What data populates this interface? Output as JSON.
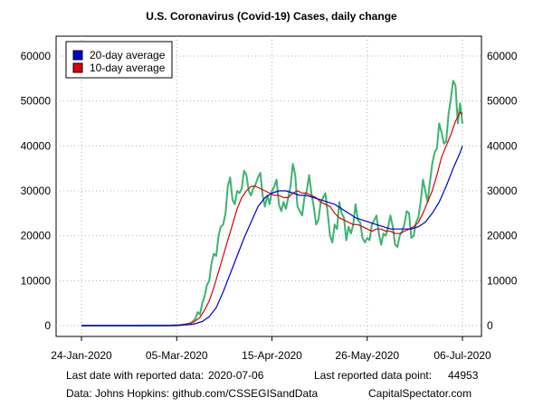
{
  "chart_data": {
    "type": "line",
    "title": "U.S. Coronavirus (Covid-19) Cases, daily change",
    "xlabel": "",
    "ylabel": "",
    "x_start": "2020-01-24",
    "x_end": "2020-07-06",
    "xlim": [
      "2020-01-24",
      "2020-07-06"
    ],
    "x_ticks": [
      {
        "date": "2020-01-24",
        "label": "24-Jan-2020"
      },
      {
        "date": "2020-03-05",
        "label": "05-Mar-2020"
      },
      {
        "date": "2020-04-15",
        "label": "15-Apr-2020"
      },
      {
        "date": "2020-05-26",
        "label": "26-May-2020"
      },
      {
        "date": "2020-07-06",
        "label": "06-Jul-2020"
      }
    ],
    "ylim": [
      0,
      60000
    ],
    "y_ticks": [
      0,
      10000,
      20000,
      30000,
      40000,
      50000,
      60000
    ],
    "grid": true,
    "legend_position": "top-left",
    "legend": [
      {
        "label": "20-day average",
        "color": "#0000cd"
      },
      {
        "label": "10-day average",
        "color": "#e00000"
      }
    ],
    "series": [
      {
        "name": "daily",
        "color": "#3cb371",
        "points": [
          [
            "2020-01-24",
            0
          ],
          [
            "2020-02-15",
            0
          ],
          [
            "2020-02-29",
            20
          ],
          [
            "2020-03-03",
            50
          ],
          [
            "2020-03-06",
            100
          ],
          [
            "2020-03-09",
            300
          ],
          [
            "2020-03-11",
            500
          ],
          [
            "2020-03-13",
            1500
          ],
          [
            "2020-03-14",
            3000
          ],
          [
            "2020-03-15",
            2500
          ],
          [
            "2020-03-16",
            5000
          ],
          [
            "2020-03-17",
            6500
          ],
          [
            "2020-03-18",
            9000
          ],
          [
            "2020-03-19",
            10000
          ],
          [
            "2020-03-20",
            14000
          ],
          [
            "2020-03-21",
            16000
          ],
          [
            "2020-03-22",
            15500
          ],
          [
            "2020-03-23",
            20000
          ],
          [
            "2020-03-24",
            22000
          ],
          [
            "2020-03-25",
            22500
          ],
          [
            "2020-03-26",
            25000
          ],
          [
            "2020-03-27",
            31000
          ],
          [
            "2020-03-28",
            33000
          ],
          [
            "2020-03-29",
            28000
          ],
          [
            "2020-03-30",
            27000
          ],
          [
            "2020-03-31",
            30000
          ],
          [
            "2020-04-01",
            29500
          ],
          [
            "2020-04-02",
            30500
          ],
          [
            "2020-04-03",
            34500
          ],
          [
            "2020-04-04",
            33500
          ],
          [
            "2020-04-05",
            30000
          ],
          [
            "2020-04-06",
            29000
          ],
          [
            "2020-04-07",
            30500
          ],
          [
            "2020-04-08",
            31500
          ],
          [
            "2020-04-09",
            33000
          ],
          [
            "2020-04-10",
            34000
          ],
          [
            "2020-04-11",
            29000
          ],
          [
            "2020-04-12",
            26500
          ],
          [
            "2020-04-13",
            29000
          ],
          [
            "2020-04-14",
            27000
          ],
          [
            "2020-04-15",
            30000
          ],
          [
            "2020-04-16",
            31000
          ],
          [
            "2020-04-17",
            32500
          ],
          [
            "2020-04-18",
            27000
          ],
          [
            "2020-04-19",
            25500
          ],
          [
            "2020-04-20",
            27500
          ],
          [
            "2020-04-21",
            26000
          ],
          [
            "2020-04-22",
            28500
          ],
          [
            "2020-04-23",
            31000
          ],
          [
            "2020-04-24",
            36000
          ],
          [
            "2020-04-25",
            33500
          ],
          [
            "2020-04-26",
            26500
          ],
          [
            "2020-04-27",
            25500
          ],
          [
            "2020-04-28",
            24500
          ],
          [
            "2020-04-29",
            28500
          ],
          [
            "2020-04-30",
            30000
          ],
          [
            "2020-05-01",
            33500
          ],
          [
            "2020-05-02",
            29500
          ],
          [
            "2020-05-03",
            26500
          ],
          [
            "2020-05-04",
            22500
          ],
          [
            "2020-05-05",
            23500
          ],
          [
            "2020-05-06",
            27500
          ],
          [
            "2020-05-07",
            28500
          ],
          [
            "2020-05-08",
            29500
          ],
          [
            "2020-05-09",
            25000
          ],
          [
            "2020-05-10",
            20000
          ],
          [
            "2020-05-11",
            18500
          ],
          [
            "2020-05-12",
            22500
          ],
          [
            "2020-05-13",
            21500
          ],
          [
            "2020-05-14",
            27500
          ],
          [
            "2020-05-15",
            25000
          ],
          [
            "2020-05-16",
            24000
          ],
          [
            "2020-05-17",
            19000
          ],
          [
            "2020-05-18",
            22000
          ],
          [
            "2020-05-19",
            20500
          ],
          [
            "2020-05-20",
            22500
          ],
          [
            "2020-05-21",
            27000
          ],
          [
            "2020-05-22",
            23500
          ],
          [
            "2020-05-23",
            23000
          ],
          [
            "2020-05-24",
            19500
          ],
          [
            "2020-05-25",
            18500
          ],
          [
            "2020-05-26",
            19500
          ],
          [
            "2020-05-27",
            19000
          ],
          [
            "2020-05-28",
            22500
          ],
          [
            "2020-05-29",
            23500
          ],
          [
            "2020-05-30",
            24500
          ],
          [
            "2020-05-31",
            20500
          ],
          [
            "2020-06-01",
            18000
          ],
          [
            "2020-06-02",
            20500
          ],
          [
            "2020-06-03",
            20000
          ],
          [
            "2020-06-04",
            22000
          ],
          [
            "2020-06-05",
            24500
          ],
          [
            "2020-06-06",
            22000
          ],
          [
            "2020-06-07",
            18000
          ],
          [
            "2020-06-08",
            17500
          ],
          [
            "2020-06-09",
            20000
          ],
          [
            "2020-06-10",
            21000
          ],
          [
            "2020-06-11",
            22500
          ],
          [
            "2020-06-12",
            25500
          ],
          [
            "2020-06-13",
            25000
          ],
          [
            "2020-06-14",
            19500
          ],
          [
            "2020-06-15",
            20000
          ],
          [
            "2020-06-16",
            23000
          ],
          [
            "2020-06-17",
            24000
          ],
          [
            "2020-06-18",
            27500
          ],
          [
            "2020-06-19",
            32500
          ],
          [
            "2020-06-20",
            30000
          ],
          [
            "2020-06-21",
            27500
          ],
          [
            "2020-06-22",
            32000
          ],
          [
            "2020-06-23",
            36000
          ],
          [
            "2020-06-24",
            38500
          ],
          [
            "2020-06-25",
            39500
          ],
          [
            "2020-06-26",
            45000
          ],
          [
            "2020-06-27",
            43000
          ],
          [
            "2020-06-28",
            40500
          ],
          [
            "2020-06-29",
            41000
          ],
          [
            "2020-06-30",
            47000
          ],
          [
            "2020-07-01",
            50500
          ],
          [
            "2020-07-02",
            54500
          ],
          [
            "2020-07-03",
            53500
          ],
          [
            "2020-07-04",
            45000
          ],
          [
            "2020-07-05",
            49500
          ],
          [
            "2020-07-06",
            44953
          ]
        ]
      },
      {
        "name": "10-day average",
        "color": "#e00000",
        "points": [
          [
            "2020-01-24",
            0
          ],
          [
            "2020-03-01",
            0
          ],
          [
            "2020-03-08",
            200
          ],
          [
            "2020-03-12",
            700
          ],
          [
            "2020-03-15",
            1800
          ],
          [
            "2020-03-17",
            3500
          ],
          [
            "2020-03-19",
            5500
          ],
          [
            "2020-03-21",
            8500
          ],
          [
            "2020-03-23",
            12000
          ],
          [
            "2020-03-25",
            15500
          ],
          [
            "2020-03-27",
            19000
          ],
          [
            "2020-03-29",
            22500
          ],
          [
            "2020-03-31",
            26000
          ],
          [
            "2020-04-02",
            28500
          ],
          [
            "2020-04-04",
            30000
          ],
          [
            "2020-04-06",
            31000
          ],
          [
            "2020-04-08",
            31000
          ],
          [
            "2020-04-10",
            30500
          ],
          [
            "2020-04-12",
            30000
          ],
          [
            "2020-04-14",
            29500
          ],
          [
            "2020-04-16",
            29000
          ],
          [
            "2020-04-18",
            29000
          ],
          [
            "2020-04-20",
            28500
          ],
          [
            "2020-04-22",
            28500
          ],
          [
            "2020-04-24",
            29500
          ],
          [
            "2020-04-26",
            30000
          ],
          [
            "2020-04-28",
            29500
          ],
          [
            "2020-04-30",
            29500
          ],
          [
            "2020-05-02",
            29000
          ],
          [
            "2020-05-04",
            28500
          ],
          [
            "2020-05-06",
            27500
          ],
          [
            "2020-05-08",
            27000
          ],
          [
            "2020-05-10",
            26500
          ],
          [
            "2020-05-12",
            25000
          ],
          [
            "2020-05-14",
            24000
          ],
          [
            "2020-05-16",
            23500
          ],
          [
            "2020-05-18",
            23000
          ],
          [
            "2020-05-20",
            22500
          ],
          [
            "2020-05-22",
            22500
          ],
          [
            "2020-05-24",
            22000
          ],
          [
            "2020-05-26",
            21500
          ],
          [
            "2020-05-28",
            21000
          ],
          [
            "2020-05-30",
            21500
          ],
          [
            "2020-06-01",
            21500
          ],
          [
            "2020-06-03",
            21000
          ],
          [
            "2020-06-05",
            21000
          ],
          [
            "2020-06-07",
            20500
          ],
          [
            "2020-06-09",
            20500
          ],
          [
            "2020-06-11",
            21000
          ],
          [
            "2020-06-13",
            21500
          ],
          [
            "2020-06-15",
            22000
          ],
          [
            "2020-06-17",
            23000
          ],
          [
            "2020-06-19",
            25000
          ],
          [
            "2020-06-21",
            27500
          ],
          [
            "2020-06-23",
            30000
          ],
          [
            "2020-06-25",
            33500
          ],
          [
            "2020-06-27",
            37500
          ],
          [
            "2020-06-29",
            40000
          ],
          [
            "2020-07-01",
            42500
          ],
          [
            "2020-07-03",
            45500
          ],
          [
            "2020-07-05",
            47500
          ],
          [
            "2020-07-06",
            47000
          ]
        ]
      },
      {
        "name": "20-day average",
        "color": "#0000cd",
        "points": [
          [
            "2020-01-24",
            0
          ],
          [
            "2020-03-05",
            0
          ],
          [
            "2020-03-12",
            300
          ],
          [
            "2020-03-16",
            900
          ],
          [
            "2020-03-19",
            2000
          ],
          [
            "2020-03-22",
            4000
          ],
          [
            "2020-03-25",
            7500
          ],
          [
            "2020-03-28",
            11500
          ],
          [
            "2020-03-31",
            15500
          ],
          [
            "2020-04-03",
            19500
          ],
          [
            "2020-04-06",
            23000
          ],
          [
            "2020-04-09",
            26500
          ],
          [
            "2020-04-12",
            28500
          ],
          [
            "2020-04-15",
            29500
          ],
          [
            "2020-04-18",
            30000
          ],
          [
            "2020-04-21",
            30000
          ],
          [
            "2020-04-24",
            29500
          ],
          [
            "2020-04-27",
            29000
          ],
          [
            "2020-04-30",
            29000
          ],
          [
            "2020-05-03",
            28500
          ],
          [
            "2020-05-06",
            28000
          ],
          [
            "2020-05-09",
            27500
          ],
          [
            "2020-05-12",
            27000
          ],
          [
            "2020-05-15",
            26000
          ],
          [
            "2020-05-18",
            25000
          ],
          [
            "2020-05-21",
            24000
          ],
          [
            "2020-05-24",
            23500
          ],
          [
            "2020-05-27",
            23000
          ],
          [
            "2020-05-30",
            22500
          ],
          [
            "2020-06-02",
            22000
          ],
          [
            "2020-06-05",
            21500
          ],
          [
            "2020-06-08",
            21500
          ],
          [
            "2020-06-11",
            21500
          ],
          [
            "2020-06-14",
            21500
          ],
          [
            "2020-06-17",
            22000
          ],
          [
            "2020-06-20",
            23000
          ],
          [
            "2020-06-23",
            25000
          ],
          [
            "2020-06-26",
            27500
          ],
          [
            "2020-06-29",
            31000
          ],
          [
            "2020-07-02",
            35000
          ],
          [
            "2020-07-05",
            38500
          ],
          [
            "2020-07-06",
            40000
          ]
        ]
      }
    ]
  },
  "footer": {
    "last_date_label": "Last date with reported data:",
    "last_date_value": "2020-07-06",
    "last_point_label": "Last reported data point:",
    "last_point_value": "44953",
    "source": "Data: Johns Hopkins: github.com/CSSEGISandData",
    "brand": "CapitalSpectator.com"
  }
}
